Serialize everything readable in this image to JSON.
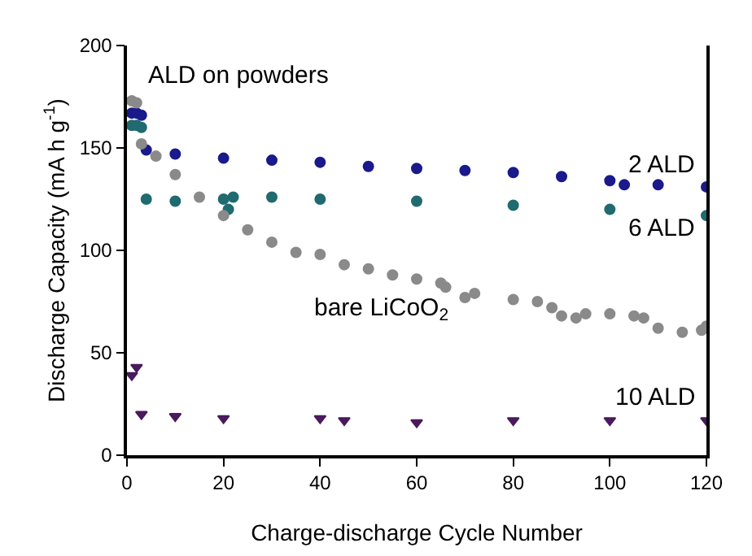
{
  "chart_data": {
    "type": "scatter",
    "xlabel": "Charge-discharge Cycle Number",
    "ylabel": "Discharge Capacity (mA h g$^{-1}$)",
    "annotations": [
      "ALD on powders"
    ],
    "xlim": [
      0,
      120
    ],
    "xticks": [
      0,
      20,
      40,
      60,
      80,
      100,
      120
    ],
    "ylim": [
      0,
      200
    ],
    "yticks": [
      0,
      50,
      100,
      150,
      200
    ],
    "grid": false,
    "legend": false,
    "series": [
      {
        "name": "2 ALD",
        "color": "#1a1a8c",
        "marker": "circle",
        "x": [
          1,
          2,
          3,
          4,
          10,
          20,
          30,
          40,
          50,
          60,
          70,
          80,
          90,
          100,
          103,
          110,
          120
        ],
        "values": [
          167,
          167,
          166,
          149,
          147,
          145,
          144,
          143,
          141,
          140,
          139,
          138,
          136,
          134,
          132,
          132,
          131
        ]
      },
      {
        "name": "6 ALD",
        "color": "#1f6b70",
        "marker": "circle",
        "x": [
          1,
          2,
          3,
          4,
          10,
          20,
          21,
          22,
          30,
          40,
          60,
          80,
          100,
          120
        ],
        "values": [
          161,
          161,
          160,
          125,
          124,
          125,
          120,
          126,
          126,
          125,
          124,
          122,
          120,
          117
        ]
      },
      {
        "name": "bare LiCoO$_{2}$",
        "color": "#8a8a8a",
        "marker": "circle",
        "x": [
          1,
          2,
          3,
          6,
          10,
          15,
          20,
          25,
          30,
          35,
          40,
          45,
          50,
          55,
          60,
          65,
          66,
          70,
          72,
          80,
          85,
          88,
          90,
          93,
          95,
          100,
          105,
          107,
          110,
          115,
          119,
          120
        ],
        "values": [
          173,
          172,
          152,
          146,
          137,
          126,
          117,
          110,
          104,
          99,
          98,
          93,
          91,
          88,
          86,
          84,
          82,
          77,
          79,
          76,
          75,
          72,
          68,
          67,
          69,
          69,
          68,
          67,
          62,
          60,
          61,
          63
        ]
      },
      {
        "name": "10 ALD",
        "color": "#4a1a5c",
        "marker": "triangle",
        "x": [
          1,
          2,
          3,
          10,
          20,
          40,
          45,
          60,
          80,
          100,
          120
        ],
        "values": [
          39,
          43,
          20,
          19,
          18,
          18,
          17,
          16,
          17,
          17,
          17
        ]
      }
    ]
  }
}
